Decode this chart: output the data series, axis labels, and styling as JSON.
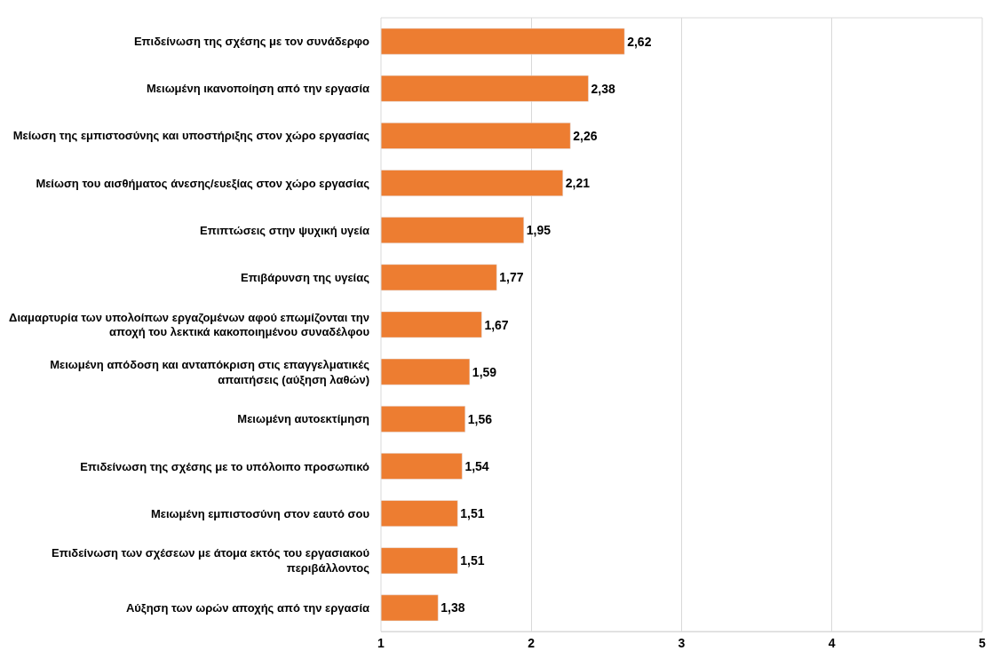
{
  "chart_data": {
    "type": "bar",
    "orientation": "horizontal",
    "categories": [
      "Επιδείνωση της σχέσης με τον συνάδερφο",
      "Μειωμένη ικανοποίηση από την εργασία",
      "Μείωση της εμπιστοσύνης και υποστήριξης στον χώρο εργασίας",
      "Μείωση του αισθήματος άνεσης/ευεξίας στον χώρο εργασίας",
      "Επιπτώσεις στην ψυχική υγεία",
      "Επιβάρυνση της υγείας",
      "Διαμαρτυρία των υπολοίπων εργαζομένων αφού επωμίζονται την αποχή του λεκτικά κακοποιημένου συναδέλφου",
      "Μειωμένη απόδοση και ανταπόκριση στις επαγγελματικές απαιτήσεις (αύξηση λαθών)",
      "Μειωμένη αυτοεκτίμηση",
      "Επιδείνωση της σχέσης με το υπόλοιπο προσωπικό",
      "Μειωμένη εμπιστοσύνη στον εαυτό σου",
      "Επιδείνωση των σχέσεων με άτομα εκτός του εργασιακού περιβάλλοντος",
      "Αύξηση των ωρών αποχής από την εργασία"
    ],
    "values": [
      2.62,
      2.38,
      2.26,
      2.21,
      1.95,
      1.77,
      1.67,
      1.59,
      1.56,
      1.54,
      1.51,
      1.51,
      1.38
    ],
    "value_labels": [
      "2,62",
      "2,38",
      "2,26",
      "2,21",
      "1,95",
      "1,77",
      "1,67",
      "1,59",
      "1,56",
      "1,54",
      "1,51",
      "1,51",
      "1,38"
    ],
    "color": "#ed7d31",
    "xlim": [
      1,
      5
    ],
    "xticks": [
      1,
      2,
      3,
      4,
      5
    ],
    "grid": "x",
    "legend": false
  }
}
